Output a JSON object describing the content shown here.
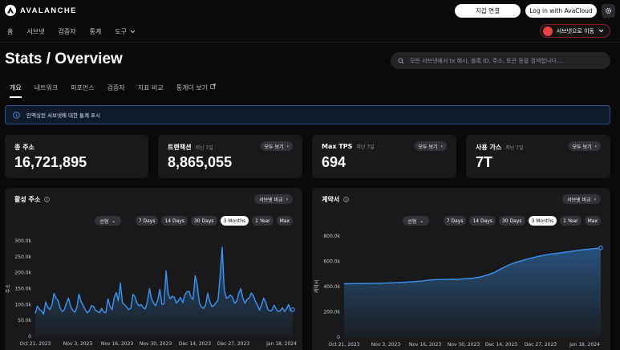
{
  "header": {
    "logo_text": "AVALANCHE",
    "wallet_button": "지갑 연결",
    "login_button": "Log in with AvaCloud"
  },
  "nav": {
    "items": [
      "홈",
      "서브넷",
      "검증자",
      "통계",
      "도구"
    ],
    "subnet_switch": "서브넷으로 이동"
  },
  "page": {
    "title": "Stats / Overview",
    "search_placeholder": "모든 서브넷에서 tx 해시, 블록 ID, 주소, 토큰 등을 검색합니다...."
  },
  "tabs": [
    "개요",
    "네트워크",
    "퍼포먼스",
    "검증자",
    "지표 비교",
    "통계더 보기"
  ],
  "notice": "인액싱된 서브넷에 대한 통계 표시",
  "cards": [
    {
      "title": "총 주소",
      "subtitle": "",
      "value": "16,721,895",
      "button": ""
    },
    {
      "title": "트랜잭션",
      "subtitle": "지난 7일",
      "value": "8,865,055",
      "button": "모두 보기"
    },
    {
      "title": "Max TPS",
      "subtitle": "지난 7일",
      "value": "694",
      "button": "모두 보기"
    },
    {
      "title": "사용 가스",
      "subtitle": "지난 7일",
      "value": "7T",
      "button": "모두 보기"
    }
  ],
  "panels": {
    "compare_label": "서브넷 비교",
    "select_label": "선형",
    "ranges": [
      "7 Days",
      "14 Days",
      "30 Days",
      "3 Months",
      "1 Year",
      "Max"
    ],
    "active_range": "3 Months"
  },
  "colors": {
    "accent_line": "#3b94f2",
    "notice_border": "#2d4f86",
    "subnet_border": "#8b1e2a",
    "brand_red": "#e84142"
  },
  "chart_data": [
    {
      "type": "area",
      "title": "활성 주소",
      "ylabel": "주소",
      "xlabel": "",
      "ylim": [
        0,
        300000
      ],
      "yticks": [
        "0",
        "50.0k",
        "100.0k",
        "150.0k",
        "200.0k",
        "250.0k",
        "300.0k"
      ],
      "xticks": [
        "Oct 21, 2023",
        "Nov 3, 2023",
        "Nov 16, 2023",
        "Nov 30, 2023",
        "Dec 14, 2023",
        "Dec 27, 2023",
        "Jan 18, 2024"
      ],
      "values": [
        72000,
        95000,
        85000,
        80000,
        70000,
        108000,
        92000,
        84000,
        98000,
        135000,
        120000,
        112000,
        88000,
        78000,
        84000,
        104000,
        120000,
        95000,
        82000,
        76000,
        90000,
        132000,
        110000,
        98000,
        85000,
        74000,
        80000,
        96000,
        94000,
        82000,
        78000,
        74000,
        88000,
        76000,
        74000,
        118000,
        94000,
        84000,
        122000,
        138000,
        112000,
        168000,
        104000,
        100000,
        92000,
        84000,
        88000,
        132000,
        124000,
        104000,
        96000,
        100000,
        90000,
        86000,
        110000,
        150000,
        118000,
        104000,
        96000,
        114000,
        148000,
        100000,
        102000,
        206000,
        132000,
        118000,
        126000,
        122000,
        104000,
        114000,
        122000,
        106000,
        130000,
        140000,
        142000,
        122000,
        116000,
        190000,
        162000,
        106000,
        92000,
        88000,
        98000,
        136000,
        110000,
        94000,
        96000,
        106000,
        114000,
        190000,
        280000,
        146000,
        120000,
        122000,
        130000,
        122000,
        104000,
        110000,
        136000,
        150000,
        118000,
        104000,
        116000,
        120000,
        136000,
        128000,
        110000,
        98000,
        82000,
        100000,
        120000,
        108000,
        84000,
        80000,
        82000,
        98000,
        86000,
        78000,
        80000,
        90000,
        78000,
        86000,
        100000,
        80000,
        84000
      ]
    },
    {
      "type": "area",
      "title": "계약서",
      "ylabel": "계약서",
      "xlabel": "",
      "ylim": [
        0,
        800000
      ],
      "yticks": [
        "0",
        "200.0k",
        "400.0k",
        "600.0k",
        "800.0k"
      ],
      "xticks": [
        "Oct 21, 2023",
        "Nov 3, 2023",
        "Nov 16, 2023",
        "Nov 30, 2023",
        "Dec 14, 2023",
        "Dec 27, 2023",
        "Jan 18, 2024"
      ],
      "values": [
        422000,
        423000,
        424000,
        424000,
        425000,
        426000,
        428000,
        430000,
        433000,
        436000,
        440000,
        445000,
        452000,
        455000,
        456000,
        457000,
        458000,
        462000,
        466000,
        474000,
        490000,
        510000,
        540000,
        568000,
        590000,
        606000,
        622000,
        636000,
        648000,
        658000,
        664000,
        672000,
        680000,
        688000,
        694000,
        700000,
        706000
      ]
    }
  ]
}
